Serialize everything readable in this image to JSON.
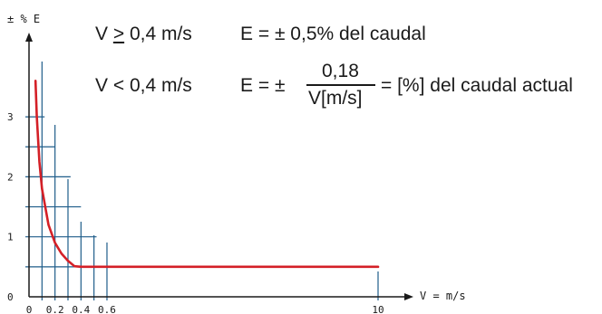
{
  "chart_data": {
    "type": "line",
    "y_axis_label": "± % E",
    "x_axis_label": "V = m/s",
    "x_ticks": [
      {
        "value": 0,
        "label": "0"
      },
      {
        "value": 0.2,
        "label": "0.2"
      },
      {
        "value": 0.4,
        "label": "0.4"
      },
      {
        "value": 0.6,
        "label": "0.6"
      },
      {
        "value": 10,
        "label": "10"
      }
    ],
    "y_ticks": [
      {
        "value": 0,
        "label": "0"
      },
      {
        "value": 1,
        "label": "1"
      },
      {
        "value": 2,
        "label": "2"
      },
      {
        "value": 3,
        "label": "3"
      }
    ],
    "ylim": [
      0,
      4
    ],
    "x_breakpoints": [
      0,
      0.1,
      0.2,
      0.3,
      0.4,
      0.5,
      0.6,
      10
    ],
    "series": [
      {
        "color": "#d42027",
        "points": [
          {
            "x": 0.05,
            "y": 3.6
          },
          {
            "x": 0.06,
            "y": 3.0
          },
          {
            "x": 0.08,
            "y": 2.25
          },
          {
            "x": 0.1,
            "y": 1.8
          },
          {
            "x": 0.15,
            "y": 1.2
          },
          {
            "x": 0.2,
            "y": 0.9
          },
          {
            "x": 0.25,
            "y": 0.72
          },
          {
            "x": 0.3,
            "y": 0.6
          },
          {
            "x": 0.35,
            "y": 0.51
          },
          {
            "x": 0.4,
            "y": 0.5
          },
          {
            "x": 10,
            "y": 0.5
          }
        ]
      }
    ],
    "grid": true,
    "grid_color": "#1f5d8a"
  },
  "formula": {
    "line1_v": "V ≥ 0,4 m/s",
    "line1_e": "E = ± 0,5% del caudal",
    "line2_v": "V < 0,4 m/s",
    "line2_e_prefix": "E = ±",
    "line2_numerator": "0,18",
    "line2_denominator": "V[m/s]",
    "line2_suffix": "= [%] del caudal actual"
  }
}
